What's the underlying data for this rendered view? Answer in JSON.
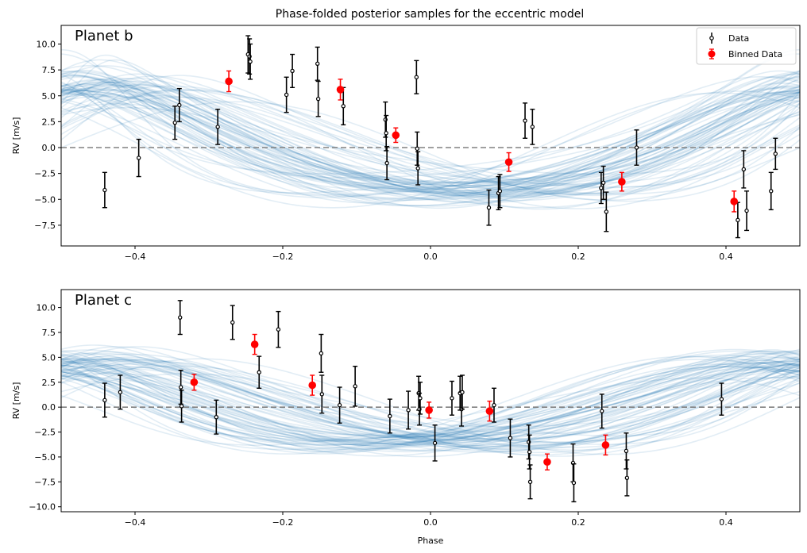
{
  "figure_title": "Phase-folded posterior samples for the eccentric model",
  "chart_data": [
    {
      "type": "scatter",
      "panel_label": "Planet b",
      "xlabel": "",
      "ylabel": "RV [m/s]",
      "xlim": [
        -0.5,
        0.5
      ],
      "ylim": [
        -9.5,
        11.8
      ],
      "xticks": [
        -0.4,
        -0.2,
        0.0,
        0.2,
        0.4
      ],
      "xtick_labels": [
        "−0.4",
        "−0.2",
        "0.0",
        "0.2",
        "0.4"
      ],
      "yticks": [
        -7.5,
        -5.0,
        -2.5,
        0.0,
        2.5,
        5.0,
        7.5,
        10.0
      ],
      "ytick_labels": [
        "−7.5",
        "−5.0",
        "−2.5",
        "0.0",
        "2.5",
        "5.0",
        "7.5",
        "10.0"
      ],
      "reference_line_y": 0,
      "legend": {
        "placement": "top-right",
        "entries": [
          "Data",
          "Binned Data"
        ]
      },
      "model": {
        "amplitude": 5.5,
        "center": -0.215,
        "ecc": 0.18
      },
      "series": [
        {
          "name": "Data",
          "x": [
            -0.441,
            -0.395,
            -0.346,
            -0.34,
            -0.288,
            -0.247,
            -0.245,
            -0.244,
            -0.195,
            -0.187,
            -0.153,
            -0.152,
            -0.118,
            -0.061,
            -0.06,
            -0.059,
            -0.019,
            -0.018,
            -0.017,
            0.079,
            0.092,
            0.094,
            0.128,
            0.138,
            0.231,
            0.234,
            0.238,
            0.279,
            0.416,
            0.424,
            0.428,
            0.461,
            0.467
          ],
          "y": [
            -4.1,
            -1.0,
            2.4,
            4.1,
            2.0,
            9.0,
            8.8,
            8.3,
            5.1,
            7.4,
            8.1,
            4.7,
            4.0,
            2.7,
            1.4,
            -1.5,
            6.8,
            -0.1,
            -2.0,
            -5.8,
            -4.4,
            -4.2,
            2.6,
            2.0,
            -3.9,
            -3.4,
            -6.2,
            0.0,
            -7.0,
            -2.1,
            -6.1,
            -4.2,
            -0.6
          ],
          "yerr": [
            1.7,
            1.8,
            1.6,
            1.6,
            1.7,
            1.8,
            1.7,
            1.7,
            1.7,
            1.6,
            1.6,
            1.7,
            1.8,
            1.7,
            1.7,
            1.6,
            1.6,
            1.6,
            1.6,
            1.7,
            1.6,
            1.6,
            1.7,
            1.7,
            1.5,
            1.6,
            1.9,
            1.7,
            1.7,
            1.8,
            1.9,
            1.8,
            1.5
          ]
        },
        {
          "name": "Binned Data",
          "x": [
            -0.273,
            -0.122,
            -0.047,
            0.106,
            0.259,
            0.411
          ],
          "y": [
            6.4,
            5.6,
            1.2,
            -1.4,
            -3.3,
            -5.2
          ],
          "yerr": [
            1.0,
            1.0,
            0.7,
            0.9,
            0.9,
            1.0
          ]
        }
      ]
    },
    {
      "type": "scatter",
      "panel_label": "Planet c",
      "xlabel": "Phase",
      "ylabel": "RV [m/s]",
      "xlim": [
        -0.5,
        0.5
      ],
      "ylim": [
        -10.5,
        11.8
      ],
      "xticks": [
        -0.4,
        -0.2,
        0.0,
        0.2,
        0.4
      ],
      "xtick_labels": [
        "−0.4",
        "−0.2",
        "0.0",
        "0.2",
        "0.4"
      ],
      "yticks": [
        -10.0,
        -7.5,
        -5.0,
        -2.5,
        0.0,
        2.5,
        5.0,
        7.5,
        10.0
      ],
      "ytick_labels": [
        "−10.0",
        "−7.5",
        "−5.0",
        "−2.5",
        "0.0",
        "2.5",
        "5.0",
        "7.5",
        "10.0"
      ],
      "reference_line_y": 0,
      "model": {
        "amplitude": 4.2,
        "center": -0.24,
        "ecc": 0.1
      },
      "series": [
        {
          "name": "Data",
          "x": [
            -0.441,
            -0.42,
            -0.339,
            -0.338,
            -0.337,
            -0.29,
            -0.268,
            -0.232,
            -0.206,
            -0.148,
            -0.147,
            -0.123,
            -0.102,
            -0.055,
            -0.03,
            -0.016,
            -0.015,
            -0.014,
            0.006,
            0.029,
            0.04,
            0.042,
            0.043,
            0.086,
            0.108,
            0.133,
            0.134,
            0.135,
            0.193,
            0.194,
            0.232,
            0.265,
            0.266,
            0.394
          ],
          "y": [
            0.7,
            1.5,
            9.0,
            2.0,
            0.1,
            -1.0,
            8.5,
            3.5,
            7.8,
            5.4,
            1.3,
            0.2,
            2.1,
            -0.9,
            -0.3,
            1.4,
            -0.2,
            0.9,
            -3.6,
            0.9,
            1.4,
            -0.2,
            1.5,
            0.2,
            -3.1,
            -3.5,
            -4.5,
            -7.5,
            -5.6,
            -7.6,
            -0.4,
            -4.4,
            -7.1,
            0.8
          ],
          "yerr": [
            1.7,
            1.7,
            1.7,
            1.7,
            1.6,
            1.7,
            1.7,
            1.6,
            1.8,
            1.9,
            1.9,
            1.8,
            2.0,
            1.7,
            1.9,
            1.7,
            1.6,
            1.6,
            1.8,
            1.7,
            1.7,
            1.7,
            1.7,
            1.7,
            1.9,
            1.7,
            1.7,
            1.7,
            1.9,
            1.9,
            1.7,
            1.8,
            1.8,
            1.6
          ]
        },
        {
          "name": "Binned Data",
          "x": [
            -0.32,
            -0.238,
            -0.16,
            -0.002,
            0.08,
            0.158,
            0.237
          ],
          "y": [
            2.5,
            6.3,
            2.2,
            -0.3,
            -0.4,
            -5.5,
            -3.8
          ],
          "yerr": [
            0.8,
            1.0,
            1.0,
            0.8,
            1.0,
            0.8,
            1.0
          ]
        }
      ]
    }
  ]
}
